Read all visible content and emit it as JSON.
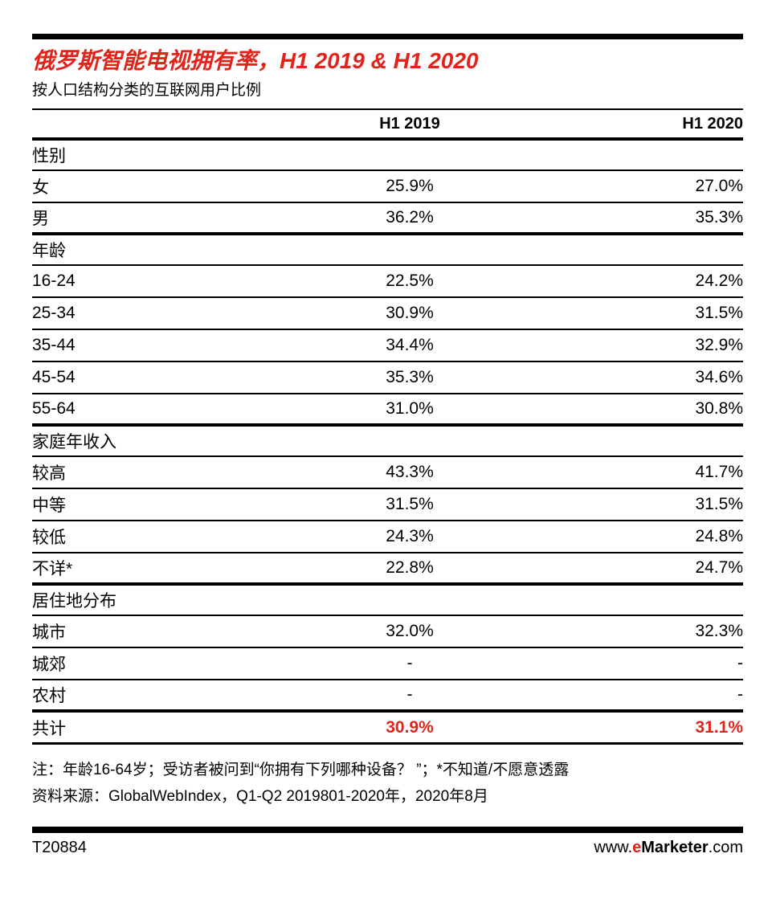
{
  "colors": {
    "accent_red": "#e2231a",
    "rule_black": "#000000"
  },
  "header": {
    "title": "俄罗斯智能电视拥有率，H1 2019 & H1 2020",
    "subtitle": "按人口结构分类的互联网用户比例"
  },
  "chart_data": {
    "type": "table",
    "columns": [
      "",
      "H1 2019",
      "H1 2020"
    ],
    "sections": [
      {
        "label": "性别",
        "rows": [
          {
            "label": "女",
            "h1_2019": "25.9%",
            "h1_2020": "27.0%"
          },
          {
            "label": "男",
            "h1_2019": "36.2%",
            "h1_2020": "35.3%"
          }
        ]
      },
      {
        "label": "年龄",
        "rows": [
          {
            "label": "16-24",
            "h1_2019": "22.5%",
            "h1_2020": "24.2%"
          },
          {
            "label": "25-34",
            "h1_2019": "30.9%",
            "h1_2020": "31.5%"
          },
          {
            "label": "35-44",
            "h1_2019": "34.4%",
            "h1_2020": "32.9%"
          },
          {
            "label": "45-54",
            "h1_2019": "35.3%",
            "h1_2020": "34.6%"
          },
          {
            "label": "55-64",
            "h1_2019": "31.0%",
            "h1_2020": "30.8%"
          }
        ]
      },
      {
        "label": "家庭年收入",
        "rows": [
          {
            "label": "较高",
            "h1_2019": "43.3%",
            "h1_2020": "41.7%"
          },
          {
            "label": "中等",
            "h1_2019": "31.5%",
            "h1_2020": "31.5%"
          },
          {
            "label": "较低",
            "h1_2019": "24.3%",
            "h1_2020": "24.8%"
          },
          {
            "label": "不详*",
            "h1_2019": "22.8%",
            "h1_2020": "24.7%"
          }
        ]
      },
      {
        "label": "居住地分布",
        "rows": [
          {
            "label": "城市",
            "h1_2019": "32.0%",
            "h1_2020": "32.3%"
          },
          {
            "label": "城郊",
            "h1_2019": "-",
            "h1_2020": "-"
          },
          {
            "label": "农村",
            "h1_2019": "-",
            "h1_2020": "-"
          }
        ]
      }
    ],
    "total": {
      "label": "共计",
      "h1_2019": "30.9%",
      "h1_2020": "31.1%"
    }
  },
  "notes": {
    "note": "注：年龄16-64岁；受访者被问到“你拥有下列哪种设备？ ”；*不知道/不愿意透露",
    "source": "资料来源：GlobalWebIndex，Q1-Q2 2019801-2020年，2020年8月"
  },
  "footer": {
    "chart_id": "T20884",
    "site_www": "www.",
    "site_e": "e",
    "site_name": "Marketer",
    "site_com": ".com"
  }
}
